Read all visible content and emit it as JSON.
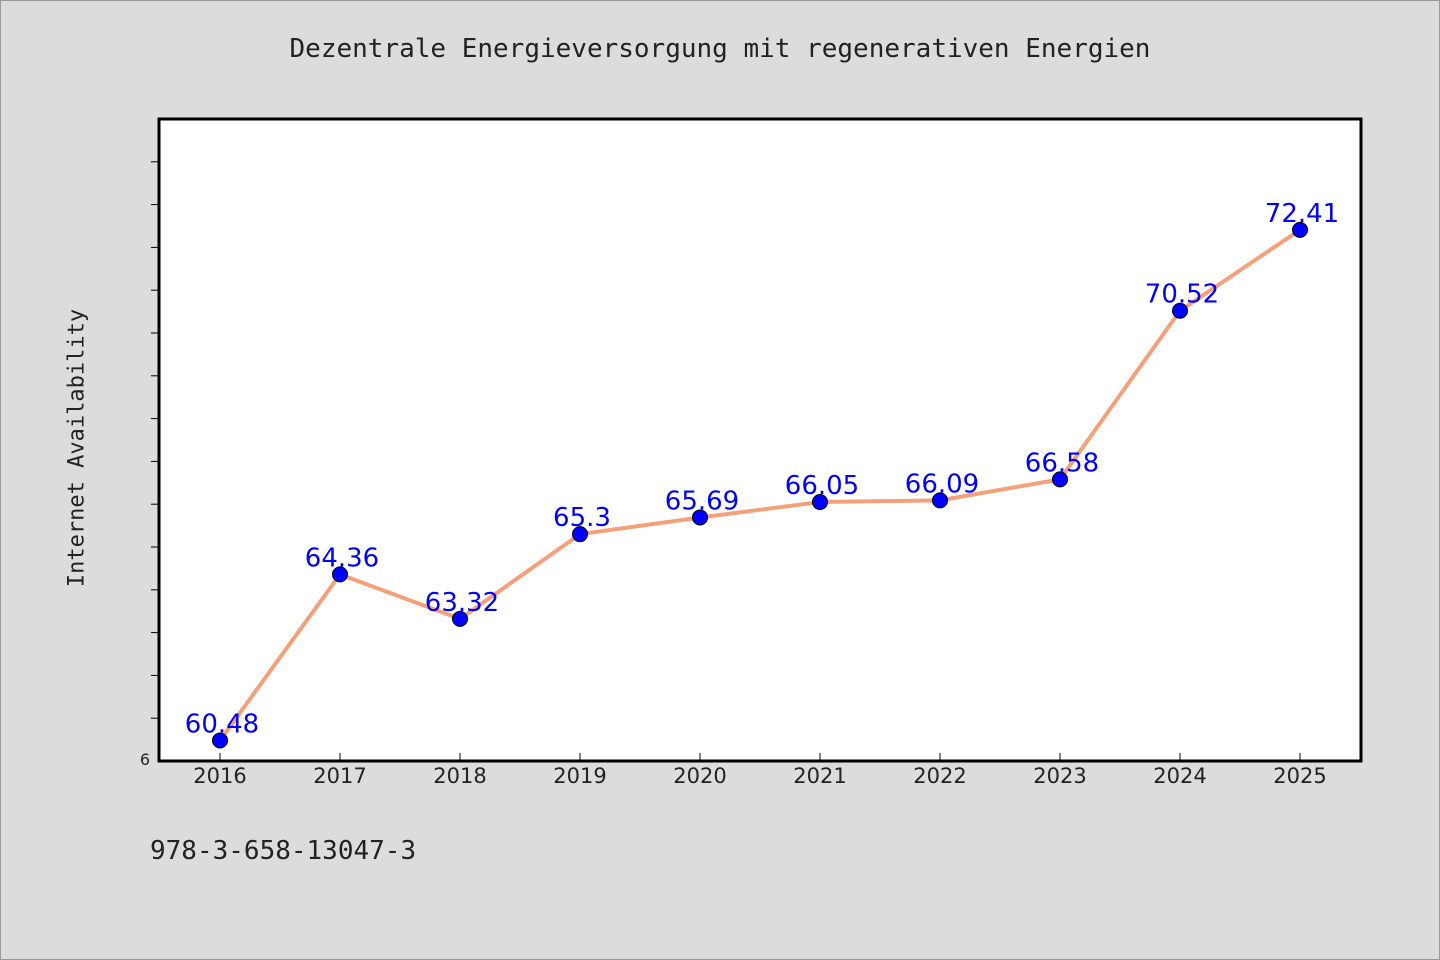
{
  "chart_data": {
    "type": "line",
    "title": "Dezentrale Energieversorgung mit regenerativen Energien",
    "xlabel": "",
    "ylabel": "Internet Availability",
    "categories": [
      "2016",
      "2017",
      "2018",
      "2019",
      "2020",
      "2021",
      "2022",
      "2023",
      "2024",
      "2025"
    ],
    "series": [
      {
        "values": [
          60.48,
          64.36,
          63.32,
          65.3,
          65.69,
          66.05,
          66.09,
          66.58,
          70.52,
          72.41
        ],
        "data_labels": [
          "60.48",
          "64.36",
          "63.32",
          "65.3",
          "65.69",
          "66.05",
          "66.09",
          "66.58",
          "70.52",
          "72.41"
        ]
      }
    ],
    "ylim": [
      60,
      75
    ],
    "y_tick_labels": [
      "6"
    ],
    "grid": false,
    "legend": "none",
    "colors": {
      "line": "#f4a07a",
      "marker": "#0000ff",
      "data_label": "#0000ff",
      "plot_background": "#ffffff",
      "page_background": "#dcdcdc"
    }
  },
  "footer": {
    "isbn": "978-3-658-13047-3"
  }
}
